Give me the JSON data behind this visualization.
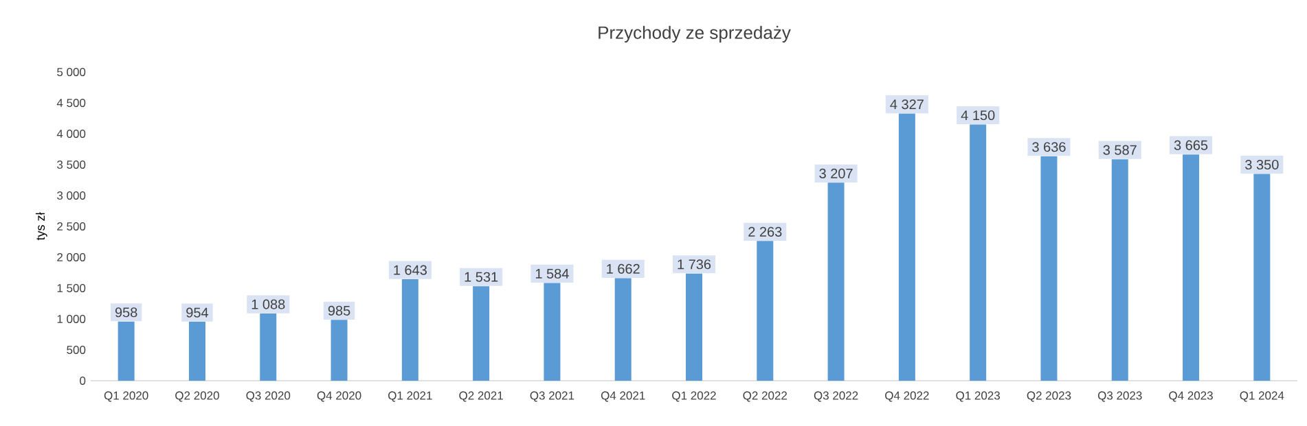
{
  "chart_data": {
    "type": "bar",
    "title": "Przychody ze sprzedaży",
    "ylabel": "tys zł",
    "categories": [
      "Q1 2020",
      "Q2 2020",
      "Q3 2020",
      "Q4 2020",
      "Q1 2021",
      "Q2 2021",
      "Q3 2021",
      "Q4 2021",
      "Q1 2022",
      "Q2 2022",
      "Q3 2022",
      "Q4 2022",
      "Q1 2023",
      "Q2 2023",
      "Q3 2023",
      "Q4 2023",
      "Q1 2024"
    ],
    "values": [
      958,
      954,
      1088,
      985,
      1643,
      1531,
      1584,
      1662,
      1736,
      2263,
      3207,
      4327,
      4150,
      3636,
      3587,
      3665,
      3350
    ],
    "value_labels": [
      "958",
      "954",
      "1 088",
      "985",
      "1 643",
      "1 531",
      "1 584",
      "1 662",
      "1 736",
      "2 263",
      "3 207",
      "4 327",
      "4 150",
      "3 636",
      "3 587",
      "3 665",
      "3 350"
    ],
    "color": "#5b9bd5",
    "ylim": [
      0,
      5000
    ],
    "yticks": [
      0,
      500,
      {
        "value": 1000,
        "label": "1 000"
      },
      {
        "value": 1500,
        "label": "1 500"
      },
      {
        "value": 2000,
        "label": "2 000"
      },
      {
        "value": 2500,
        "label": "2 500"
      },
      {
        "value": 3000,
        "label": "3 000"
      },
      {
        "value": 3500,
        "label": "3 500"
      },
      {
        "value": 4000,
        "label": "4 000"
      },
      {
        "value": 4500,
        "label": "4 500"
      },
      {
        "value": 5000,
        "label": "5 000"
      }
    ]
  }
}
